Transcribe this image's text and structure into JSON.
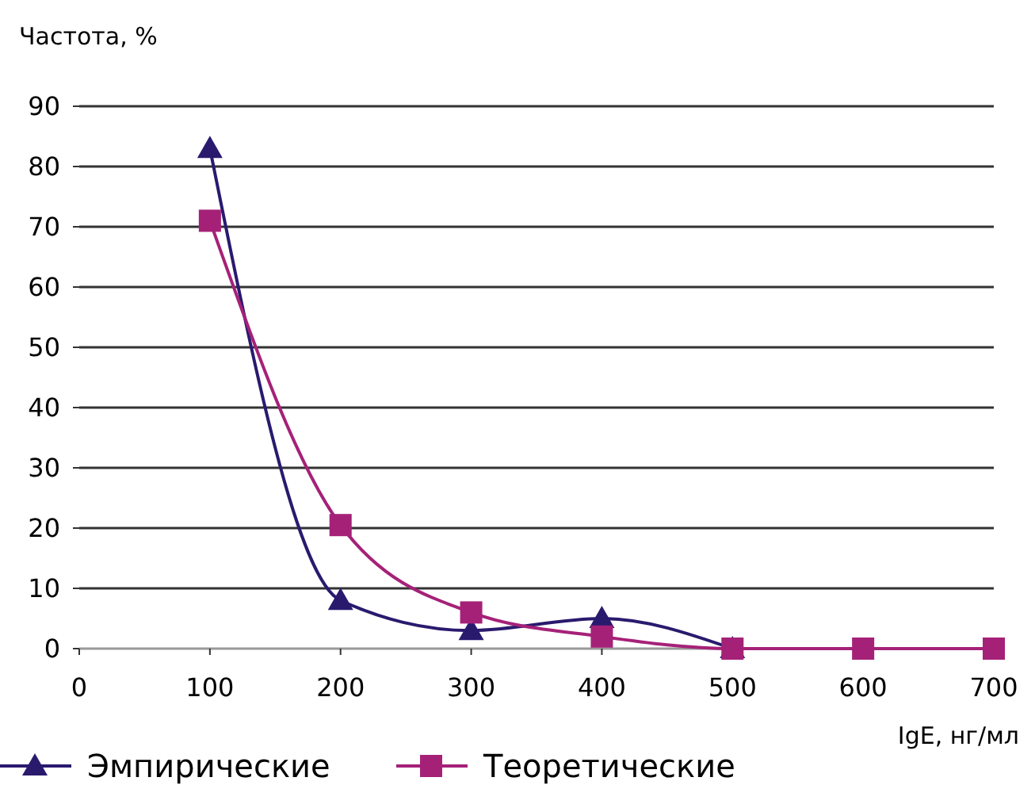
{
  "chart_data": {
    "type": "line",
    "ylabel": "Частота, %",
    "xlabel": "IgE, нг/мл",
    "x": [
      100,
      200,
      300,
      400,
      500,
      600,
      700
    ],
    "xlim": [
      0,
      700
    ],
    "xticks": [
      0,
      100,
      200,
      300,
      400,
      500,
      600,
      700
    ],
    "ylim": [
      0,
      90
    ],
    "yticks": [
      0,
      10,
      20,
      30,
      40,
      50,
      60,
      70,
      80,
      90
    ],
    "grid": "y",
    "legend": "bottom",
    "line_style": "solid",
    "series": [
      {
        "name": "Эмпирические",
        "color": "#2a1a6e",
        "marker": "triangle",
        "x": [
          100,
          200,
          300,
          400,
          500
        ],
        "values": [
          83,
          8,
          3,
          5,
          0
        ]
      },
      {
        "name": "Теоретические",
        "color": "#a52178",
        "marker": "square",
        "values": [
          71,
          20.5,
          6,
          2,
          0,
          0,
          0
        ]
      }
    ]
  }
}
